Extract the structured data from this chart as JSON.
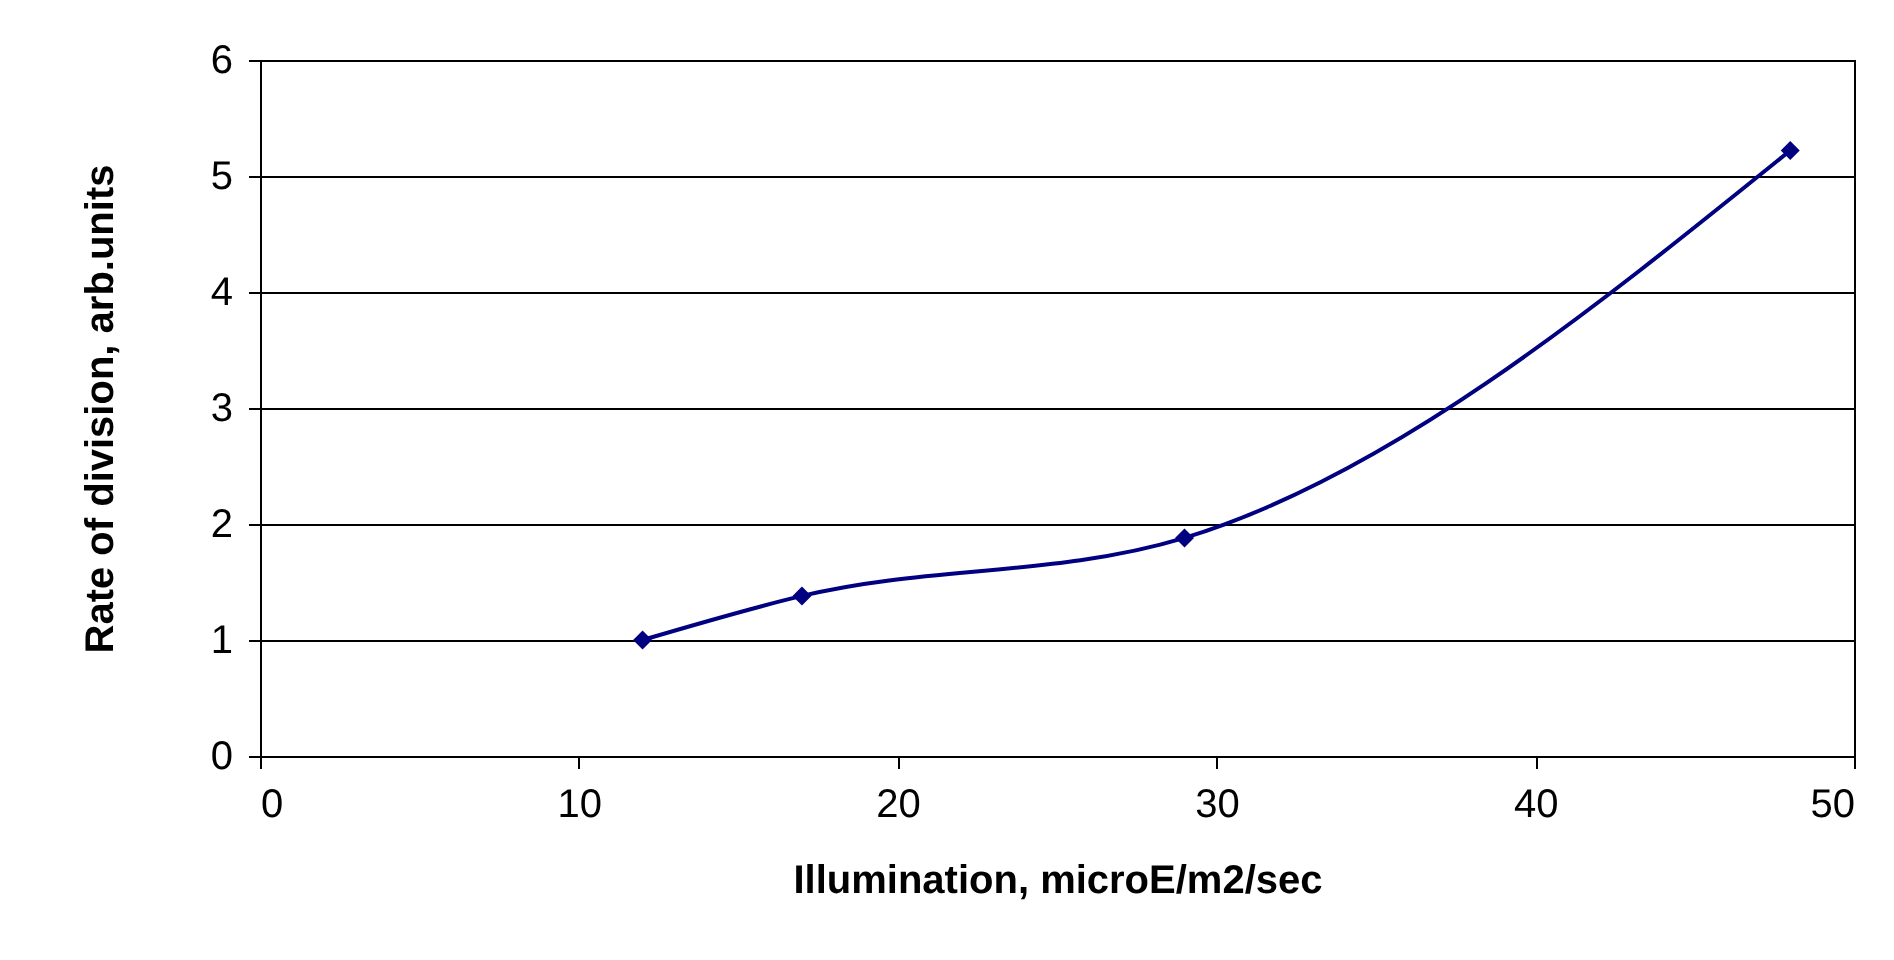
{
  "chart_data": {
    "type": "line",
    "xlabel": "Illumination, microE/m2/sec",
    "ylabel": "Rate of division, arb.units",
    "x": [
      12,
      17,
      29,
      48
    ],
    "series": [
      {
        "color": "#000080",
        "values": [
          1.0,
          1.38,
          1.88,
          5.22
        ]
      }
    ],
    "xlim": [
      0,
      50
    ],
    "xticks": [
      0,
      10,
      20,
      30,
      40,
      50
    ],
    "ylim": [
      0,
      6
    ],
    "yticks": [
      0,
      1,
      2,
      3,
      4,
      5,
      6
    ],
    "grid": "y",
    "marker": "diamond",
    "line_style": "solid",
    "legend": false
  }
}
